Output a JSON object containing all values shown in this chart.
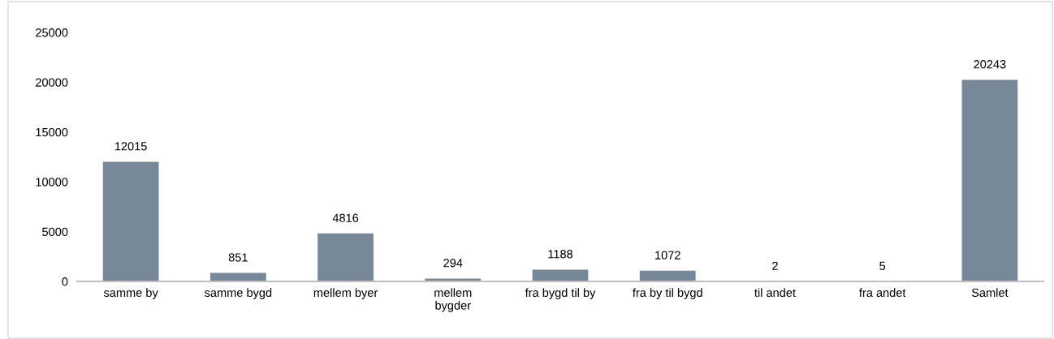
{
  "chart_data": {
    "type": "bar",
    "categories": [
      "samme by",
      "samme bygd",
      "mellem byer",
      "mellem\nbygder",
      "fra bygd til by",
      "fra by til bygd",
      "til andet",
      "fra andet",
      "Samlet"
    ],
    "values": [
      12015,
      851,
      4816,
      294,
      1188,
      1072,
      2,
      5,
      20243
    ],
    "color": "#778899",
    "ylim": [
      0,
      25000
    ],
    "yticks": [
      0,
      5000,
      10000,
      15000,
      20000,
      25000
    ],
    "grid": false,
    "data_labels": true
  }
}
